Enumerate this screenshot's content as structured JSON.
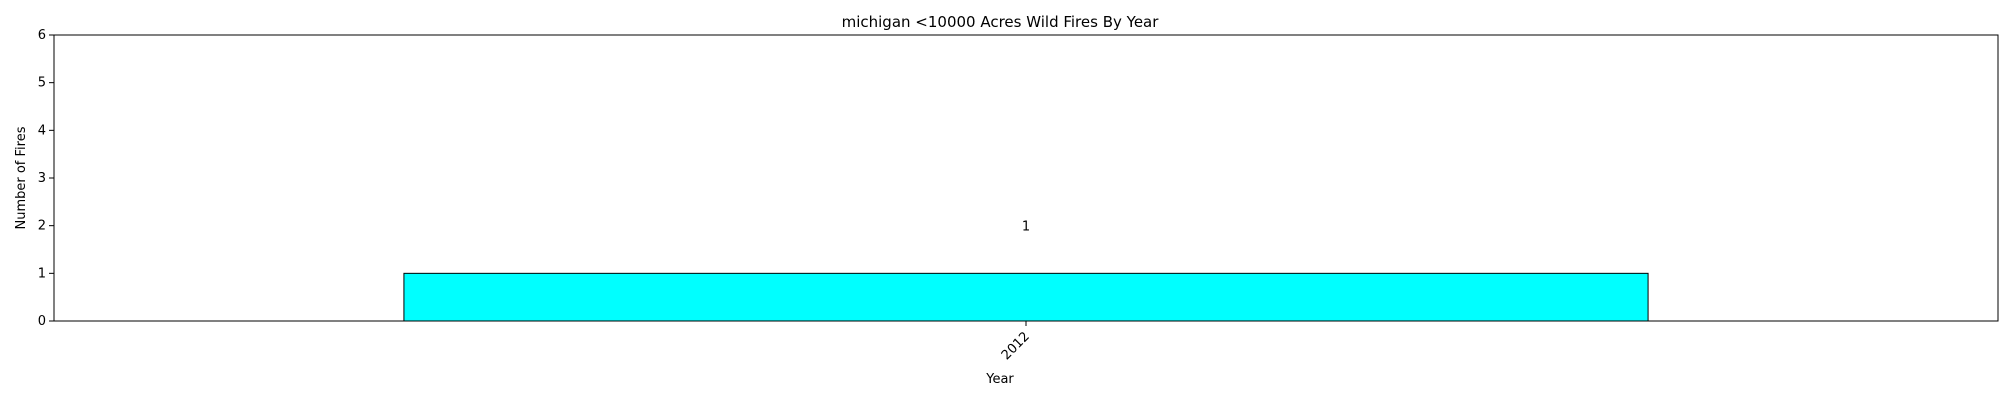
{
  "chart_data": {
    "type": "bar",
    "title": "michigan <10000 Acres Wild Fires By Year",
    "xlabel": "Year",
    "ylabel": "Number of Fires",
    "categories": [
      "2012"
    ],
    "values": [
      1
    ],
    "data_labels": [
      "1"
    ],
    "ylim": [
      0,
      6
    ],
    "yticks": [
      0,
      1,
      2,
      3,
      4,
      5,
      6
    ],
    "xtick_rotation_deg": 45,
    "grid": false,
    "legend": "none",
    "bar_color": "#00FFFF",
    "bar_edge_color": "#000000"
  }
}
